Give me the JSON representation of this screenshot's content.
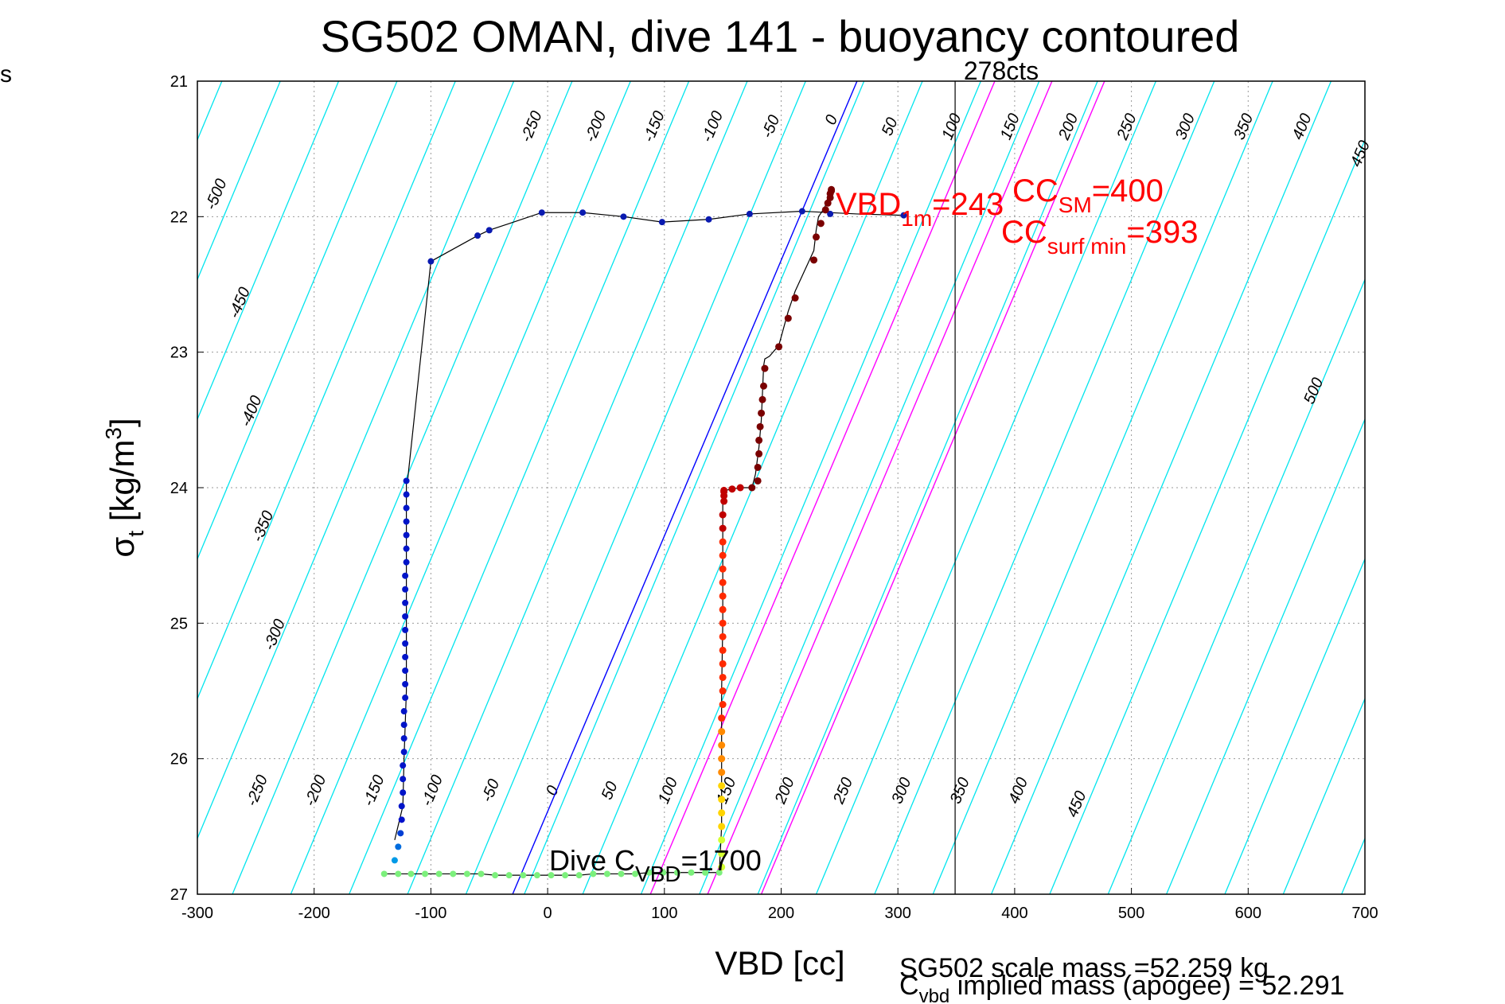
{
  "chart_data": {
    "type": "scatter",
    "title": "SG502 OMAN, dive 141 - buoyancy contoured",
    "xlabel": "VBD [cc]",
    "ylabel_main": "σ",
    "ylabel_sub": "t",
    "ylabel_unit": " [kg/m",
    "ylabel_sup": "3",
    "ylabel_close": "]",
    "xlim": [
      -300,
      700
    ],
    "ylim": [
      21,
      27
    ],
    "y_reversed": true,
    "grid": true,
    "x_ticks": [
      -300,
      -200,
      -100,
      0,
      100,
      200,
      300,
      400,
      500,
      600,
      700
    ],
    "y_ticks": [
      21,
      22,
      23,
      24,
      25,
      26,
      27
    ],
    "side_label": "s",
    "contours": {
      "color": "#00e5ee",
      "slope_cc_per_sigma": 48.5,
      "values": [
        -500,
        -450,
        -400,
        -350,
        -300,
        -250,
        -200,
        -150,
        -100,
        -50,
        0,
        50,
        100,
        150,
        200,
        250,
        300,
        350,
        400,
        450,
        500
      ],
      "labels_top": [
        {
          "text": "-500",
          "x": -280,
          "y": 21.85
        },
        {
          "text": "-450",
          "x": -260,
          "y": 22.65
        },
        {
          "text": "-400",
          "x": -250,
          "y": 23.45
        },
        {
          "text": "-350",
          "x": -240,
          "y": 24.3
        },
        {
          "text": "-300",
          "x": -230,
          "y": 25.1
        },
        {
          "text": "-250",
          "x": -10,
          "y": 21.35
        },
        {
          "text": "-200",
          "x": 45,
          "y": 21.35
        },
        {
          "text": "-150",
          "x": 95,
          "y": 21.35
        },
        {
          "text": "-100",
          "x": 145,
          "y": 21.35
        },
        {
          "text": "-50",
          "x": 195,
          "y": 21.35
        },
        {
          "text": "0",
          "x": 247,
          "y": 21.3
        },
        {
          "text": "50",
          "x": 297,
          "y": 21.35
        },
        {
          "text": "100",
          "x": 350,
          "y": 21.35
        },
        {
          "text": "150",
          "x": 400,
          "y": 21.35
        },
        {
          "text": "200",
          "x": 450,
          "y": 21.35
        },
        {
          "text": "250",
          "x": 500,
          "y": 21.35
        },
        {
          "text": "300",
          "x": 550,
          "y": 21.35
        },
        {
          "text": "350",
          "x": 600,
          "y": 21.35
        },
        {
          "text": "400",
          "x": 650,
          "y": 21.35
        },
        {
          "text": "450",
          "x": 700,
          "y": 21.55
        },
        {
          "text": "500",
          "x": 660,
          "y": 23.3
        }
      ],
      "labels_bottom": [
        {
          "text": "-250",
          "x": -245,
          "y": 26.25
        },
        {
          "text": "-200",
          "x": -195,
          "y": 26.25
        },
        {
          "text": "-150",
          "x": -145,
          "y": 26.25
        },
        {
          "text": "-100",
          "x": -95,
          "y": 26.25
        },
        {
          "text": "-50",
          "x": -45,
          "y": 26.25
        },
        {
          "text": "0",
          "x": 8,
          "y": 26.25
        },
        {
          "text": "50",
          "x": 57,
          "y": 26.25
        },
        {
          "text": "100",
          "x": 107,
          "y": 26.25
        },
        {
          "text": "150",
          "x": 157,
          "y": 26.25
        },
        {
          "text": "200",
          "x": 207,
          "y": 26.25
        },
        {
          "text": "250",
          "x": 257,
          "y": 26.25
        },
        {
          "text": "300",
          "x": 307,
          "y": 26.25
        },
        {
          "text": "350",
          "x": 357,
          "y": 26.25
        },
        {
          "text": "400",
          "x": 407,
          "y": 26.25
        },
        {
          "text": "450",
          "x": 457,
          "y": 26.35
        }
      ]
    },
    "ref_lines": [
      {
        "kind": "neutral",
        "color": "#0000ff",
        "x": [
          -30,
          265
        ],
        "y": [
          27,
          21
        ]
      },
      {
        "kind": "magenta",
        "color": "#ff00ff",
        "x": [
          88,
          383
        ],
        "y": [
          27,
          21
        ]
      },
      {
        "kind": "magenta",
        "color": "#ff00ff",
        "x": [
          137,
          432
        ],
        "y": [
          27,
          21
        ]
      },
      {
        "kind": "magenta",
        "color": "#ff00ff",
        "x": [
          183,
          477
        ],
        "y": [
          27,
          21
        ]
      },
      {
        "kind": "vertical",
        "color": "#000000",
        "x": [
          349,
          349
        ],
        "y": [
          21,
          27
        ]
      }
    ],
    "vertical_label": "278cts",
    "series": [
      {
        "id": "dive",
        "color_scheme": "blue",
        "x": [
          -140,
          -138,
          -131,
          -128,
          -125,
          -125,
          -125,
          -123,
          -122,
          -121,
          -121,
          -121,
          -121,
          -121,
          -121,
          -121,
          -121,
          -121,
          -122,
          -126,
          -123,
          -121
        ],
        "y": [
          26.85,
          26.8,
          26.7,
          26.6,
          26.4,
          26.2,
          26.0,
          25.75,
          25.5,
          25.25,
          25.0,
          24.75,
          24.5,
          24.3,
          24.15,
          24.05,
          23.95,
          23.9,
          23.9,
          23.9,
          23.9,
          23.9
        ]
      }
    ],
    "dive_points": {
      "x": [
        -123,
        -124,
        -125,
        -125,
        -125,
        -126,
        -124,
        -123,
        -122,
        -121,
        -121,
        -121,
        -121,
        -121,
        -121,
        -121,
        -121,
        -121,
        -121,
        -120,
        -119
      ],
      "y": [
        26.3,
        26.15,
        26.0,
        25.85,
        25.7,
        25.55,
        25.4,
        25.2,
        25.0,
        24.8,
        24.6,
        24.45,
        24.35,
        24.25,
        24.15,
        24.08,
        24.03,
        24.0,
        23.98,
        23.96,
        23.95
      ]
    },
    "traces": {
      "dive_line": {
        "x": [
          -131,
          -124,
          -123,
          -121,
          -121,
          -121,
          -121,
          -121,
          -121,
          -120,
          -100,
          -60,
          -50,
          -5,
          30,
          65,
          98,
          138,
          173,
          218,
          265,
          305
        ],
        "y": [
          26.6,
          26.35,
          26.0,
          25.5,
          25.0,
          24.5,
          24.2,
          24.0,
          23.95,
          23.95,
          22.33,
          22.14,
          22.1,
          21.97,
          21.97,
          22.0,
          22.04,
          22.02,
          21.98,
          21.96,
          21.98,
          21.99
        ]
      },
      "dive_dots_x": [
        -121,
        -121,
        -121,
        -121,
        -121,
        -121,
        -121,
        -122,
        -122,
        -122,
        -122,
        -122,
        -122,
        -122,
        -122,
        -122,
        -122,
        -123,
        -123,
        -123,
        -123,
        -124,
        -124,
        -124,
        -125,
        -125,
        -126,
        -128,
        -131
      ],
      "dive_dots_y": [
        23.95,
        24.05,
        24.15,
        24.25,
        24.35,
        24.45,
        24.55,
        24.65,
        24.75,
        24.85,
        24.95,
        25.05,
        25.15,
        25.25,
        25.35,
        25.45,
        25.55,
        25.65,
        25.75,
        25.85,
        25.95,
        26.05,
        26.15,
        26.25,
        26.35,
        26.45,
        26.55,
        26.65,
        26.75
      ],
      "top_dots_x": [
        -100,
        -60,
        -50,
        -5,
        30,
        65,
        98,
        138,
        173,
        218,
        242,
        305
      ],
      "top_dots_y": [
        22.33,
        22.14,
        22.1,
        21.97,
        21.97,
        22.0,
        22.04,
        22.02,
        21.98,
        21.96,
        21.98,
        21.99
      ],
      "bottom_dots_x": [
        -140,
        -128,
        -117,
        -105,
        -93,
        -81,
        -69,
        -57,
        -45,
        -33,
        -21,
        -9,
        3,
        15,
        27,
        39,
        51,
        63,
        75,
        87,
        99,
        111,
        123,
        135,
        147
      ],
      "bottom_dots_y": [
        26.85,
        26.85,
        26.85,
        26.85,
        26.85,
        26.85,
        26.85,
        26.85,
        26.86,
        26.86,
        26.86,
        26.86,
        26.86,
        26.86,
        26.86,
        26.85,
        26.85,
        26.85,
        26.85,
        26.84,
        26.84,
        26.84,
        26.84,
        26.84,
        26.84
      ],
      "climb_line": {
        "x": [
          147,
          149,
          149,
          149,
          150,
          150,
          150,
          152,
          158,
          165,
          175,
          178,
          181,
          183,
          184,
          185,
          186,
          188,
          190,
          198,
          206,
          212,
          228,
          230,
          232,
          236,
          239,
          240,
          241,
          242
        ],
        "y": [
          26.84,
          26.5,
          26.0,
          25.5,
          25.0,
          24.5,
          24.1,
          24.02,
          24.01,
          24.0,
          24.0,
          23.9,
          23.7,
          23.5,
          23.3,
          23.1,
          23.05,
          23.04,
          23.03,
          22.95,
          22.7,
          22.55,
          22.25,
          22.1,
          22.0,
          21.95,
          21.9,
          21.85,
          21.82,
          21.8
        ]
      },
      "climb_dots_x": [
        149,
        149,
        149,
        149,
        149,
        149,
        149,
        149,
        149,
        149,
        149,
        149,
        150,
        150,
        150,
        150,
        150,
        150,
        150,
        150,
        150,
        150,
        150,
        150,
        150,
        150,
        150,
        151,
        151,
        151,
        151,
        158,
        165,
        175,
        180,
        180,
        181,
        181,
        182,
        183,
        184,
        185,
        186,
        198,
        206,
        212,
        228,
        230,
        234,
        238,
        240,
        242,
        242,
        243,
        243
      ],
      "climb_dots_y": [
        26.8,
        26.7,
        26.6,
        26.5,
        26.4,
        26.3,
        26.2,
        26.1,
        26.0,
        25.9,
        25.8,
        25.7,
        25.6,
        25.5,
        25.4,
        25.3,
        25.2,
        25.1,
        25.0,
        24.9,
        24.8,
        24.7,
        24.6,
        24.5,
        24.4,
        24.3,
        24.2,
        24.1,
        24.06,
        24.03,
        24.02,
        24.01,
        24.0,
        24.0,
        23.95,
        23.85,
        23.75,
        23.65,
        23.55,
        23.45,
        23.35,
        23.25,
        23.12,
        22.96,
        22.75,
        22.6,
        22.32,
        22.15,
        22.05,
        21.95,
        21.9,
        21.86,
        21.83,
        21.81,
        21.8
      ]
    },
    "annotations": {
      "vbd1m_main": "VBD",
      "vbd1m_sub": "1m",
      "vbd1m_value": "=243",
      "ccsm_main": "CC",
      "ccsm_sub": "SM",
      "ccsm_value": "=400",
      "ccsurf_main": "CC",
      "ccsurf_sub": "surf min",
      "ccsurf_value": "=393",
      "dive_c_main": "Dive C",
      "dive_c_sub": "VBD",
      "dive_c_value": "=1700",
      "footer_line1": "SG502 scale mass =52.259 kg",
      "footer_line2_main": "C",
      "footer_line2_sub": "vbd",
      "footer_line2_rest": " implied mass (apogee) = 52.291"
    }
  }
}
